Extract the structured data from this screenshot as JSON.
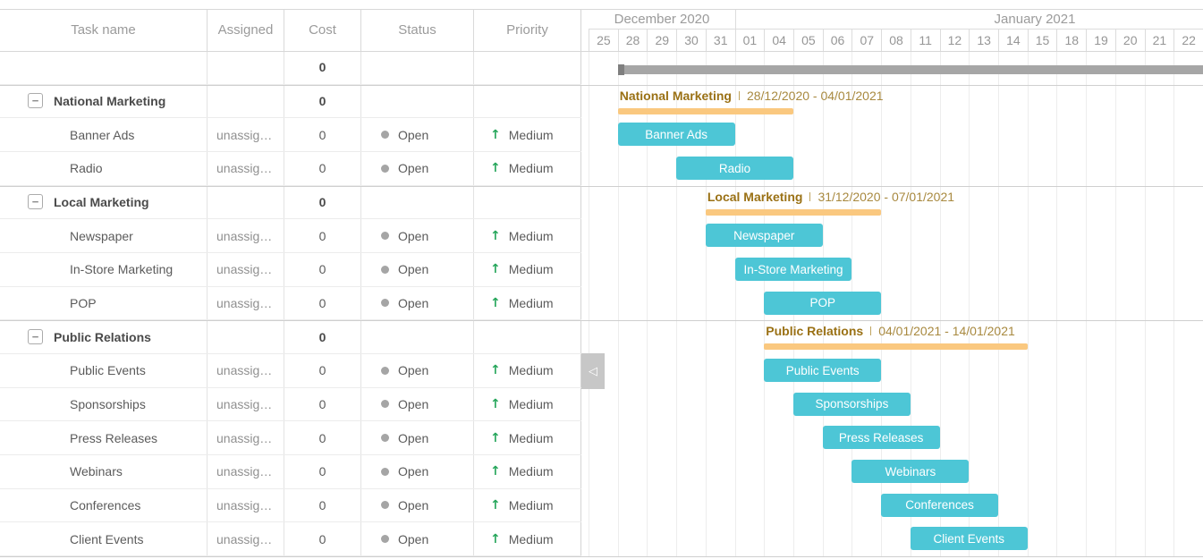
{
  "table": {
    "columns": [
      {
        "id": "name",
        "label": "Task name"
      },
      {
        "id": "assigned",
        "label": "Assigned"
      },
      {
        "id": "cost",
        "label": "Cost"
      },
      {
        "id": "status",
        "label": "Status"
      },
      {
        "id": "priority",
        "label": "Priority"
      }
    ],
    "rows": [
      {
        "type": "project",
        "name": "",
        "assigned": "",
        "cost": "0",
        "status": "",
        "priority": ""
      },
      {
        "type": "parent",
        "name": "National Marketing",
        "assigned": "",
        "cost": "0",
        "status": "",
        "priority": ""
      },
      {
        "type": "child",
        "name": "Banner Ads",
        "assigned": "unassig…",
        "cost": "0",
        "status": "Open",
        "priority": "Medium"
      },
      {
        "type": "child",
        "name": "Radio",
        "assigned": "unassig…",
        "cost": "0",
        "status": "Open",
        "priority": "Medium"
      },
      {
        "type": "parent",
        "name": "Local Marketing",
        "assigned": "",
        "cost": "0",
        "status": "",
        "priority": ""
      },
      {
        "type": "child",
        "name": "Newspaper",
        "assigned": "unassig…",
        "cost": "0",
        "status": "Open",
        "priority": "Medium"
      },
      {
        "type": "child",
        "name": "In-Store Marketing",
        "assigned": "unassig…",
        "cost": "0",
        "status": "Open",
        "priority": "Medium"
      },
      {
        "type": "child",
        "name": "POP",
        "assigned": "unassig…",
        "cost": "0",
        "status": "Open",
        "priority": "Medium"
      },
      {
        "type": "parent",
        "name": "Public Relations",
        "assigned": "",
        "cost": "0",
        "status": "",
        "priority": ""
      },
      {
        "type": "child",
        "name": "Public Events",
        "assigned": "unassig…",
        "cost": "0",
        "status": "Open",
        "priority": "Medium"
      },
      {
        "type": "child",
        "name": "Sponsorships",
        "assigned": "unassig…",
        "cost": "0",
        "status": "Open",
        "priority": "Medium"
      },
      {
        "type": "child",
        "name": "Press Releases",
        "assigned": "unassig…",
        "cost": "0",
        "status": "Open",
        "priority": "Medium"
      },
      {
        "type": "child",
        "name": "Webinars",
        "assigned": "unassig…",
        "cost": "0",
        "status": "Open",
        "priority": "Medium"
      },
      {
        "type": "child",
        "name": "Conferences",
        "assigned": "unassig…",
        "cost": "0",
        "status": "Open",
        "priority": "Medium"
      },
      {
        "type": "child",
        "name": "Client Events",
        "assigned": "unassig…",
        "cost": "0",
        "status": "Open",
        "priority": "Medium"
      }
    ]
  },
  "timeline": {
    "months": [
      {
        "label": "December 2020",
        "start": 0,
        "span": 5
      },
      {
        "label": "January 2021",
        "start": 5,
        "span": 16
      }
    ],
    "days": [
      "25",
      "28",
      "29",
      "30",
      "31",
      "01",
      "04",
      "05",
      "06",
      "07",
      "08",
      "11",
      "12",
      "13",
      "14",
      "15",
      "18",
      "19",
      "20",
      "21",
      "22"
    ]
  },
  "gantt": {
    "bars": [
      {
        "row": 0,
        "type": "project",
        "start": 1,
        "span": 20
      },
      {
        "row": 1,
        "type": "summary",
        "label": "National Marketing",
        "dates": "28/12/2020 - 04/01/2021",
        "start": 1,
        "span": 6
      },
      {
        "row": 2,
        "type": "task",
        "label": "Banner Ads",
        "start": 1,
        "span": 4
      },
      {
        "row": 3,
        "type": "task",
        "label": "Radio",
        "start": 3,
        "span": 4
      },
      {
        "row": 4,
        "type": "summary",
        "label": "Local Marketing",
        "dates": "31/12/2020 - 07/01/2021",
        "start": 4,
        "span": 6
      },
      {
        "row": 5,
        "type": "task",
        "label": "Newspaper",
        "start": 4,
        "span": 4
      },
      {
        "row": 6,
        "type": "task",
        "label": "In-Store Marketing",
        "start": 5,
        "span": 4
      },
      {
        "row": 7,
        "type": "task",
        "label": "POP",
        "start": 6,
        "span": 4
      },
      {
        "row": 8,
        "type": "summary",
        "label": "Public Relations",
        "dates": "04/01/2021 - 14/01/2021",
        "start": 6,
        "span": 9
      },
      {
        "row": 9,
        "type": "task",
        "label": "Public Events",
        "start": 6,
        "span": 4
      },
      {
        "row": 10,
        "type": "task",
        "label": "Sponsorships",
        "start": 7,
        "span": 4
      },
      {
        "row": 11,
        "type": "task",
        "label": "Press Releases",
        "start": 8,
        "span": 4
      },
      {
        "row": 12,
        "type": "task",
        "label": "Webinars",
        "start": 9,
        "span": 4
      },
      {
        "row": 13,
        "type": "task",
        "label": "Conferences",
        "start": 10,
        "span": 4
      },
      {
        "row": 14,
        "type": "task",
        "label": "Client Events",
        "start": 11,
        "span": 4
      }
    ]
  },
  "icons": {
    "collapse_minus": "−",
    "status_open": "●",
    "priority_medium_up": "↑",
    "splitter_collapse_left": "◁"
  },
  "colors": {
    "task_bar": "#4dc6d6",
    "task_bar_text": "#ffffff",
    "summary_bar": "#fac87f",
    "summary_name_text": "#9a7115",
    "summary_date_text": "#a8893f",
    "summary_divider": "#bfa45e",
    "project_bar": "#a6a6a6",
    "project_bar_cap": "#7f7f7f",
    "priority_up_green": "#26a65b",
    "status_open_dot": "#a5a5a5"
  }
}
